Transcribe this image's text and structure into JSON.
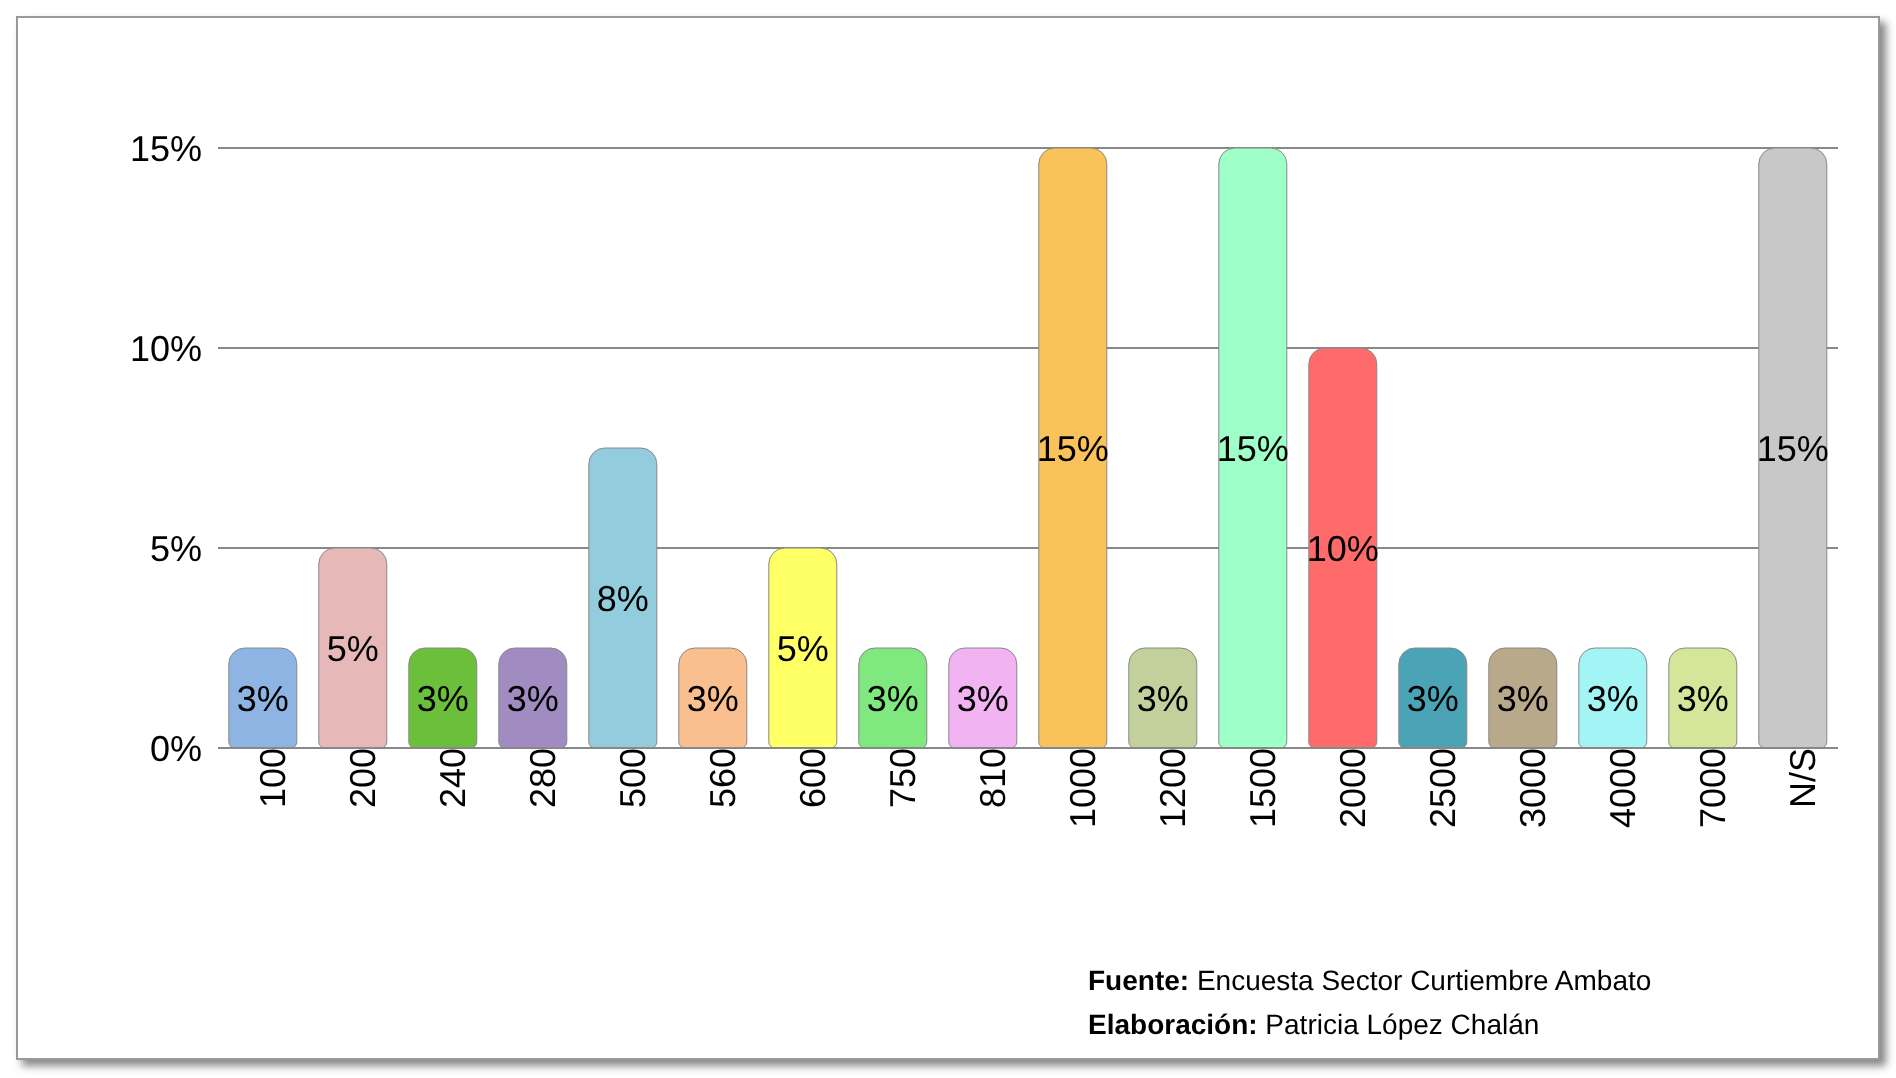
{
  "chart_data": {
    "type": "bar",
    "categories": [
      "100",
      "200",
      "240",
      "280",
      "500",
      "560",
      "600",
      "750",
      "810",
      "1000",
      "1200",
      "1500",
      "2000",
      "2500",
      "3000",
      "4000",
      "7000",
      "N/S"
    ],
    "values": [
      2.5,
      5,
      2.5,
      2.5,
      7.5,
      2.5,
      5,
      2.5,
      2.5,
      15,
      2.5,
      15,
      10,
      2.5,
      2.5,
      2.5,
      2.5,
      15
    ],
    "value_labels": [
      "3%",
      "5%",
      "3%",
      "3%",
      "8%",
      "3%",
      "5%",
      "3%",
      "3%",
      "15%",
      "3%",
      "15%",
      "10%",
      "3%",
      "3%",
      "3%",
      "3%",
      "15%"
    ],
    "colors": [
      "#8db4e2",
      "#e6b9b8",
      "#6bbf3a",
      "#a08cc0",
      "#93cddd",
      "#fabf8f",
      "#ffff66",
      "#7fe87f",
      "#f2b3f2",
      "#fac25a",
      "#c4d09b",
      "#9effc8",
      "#ff6b6b",
      "#4ba3b6",
      "#b8a98a",
      "#a3f5f5",
      "#d5e59a",
      "#c8c8c8"
    ],
    "ylim": [
      0,
      15
    ],
    "yticks": [
      {
        "value": 0,
        "label": "0%"
      },
      {
        "value": 5,
        "label": "5%"
      },
      {
        "value": 10,
        "label": "10%"
      },
      {
        "value": 15,
        "label": "15%"
      }
    ],
    "grid": "y",
    "annotations": [
      "Fuente: Encuesta Sector Curtiembre Ambato",
      "Elaboración: Patricia López Chalán"
    ]
  }
}
